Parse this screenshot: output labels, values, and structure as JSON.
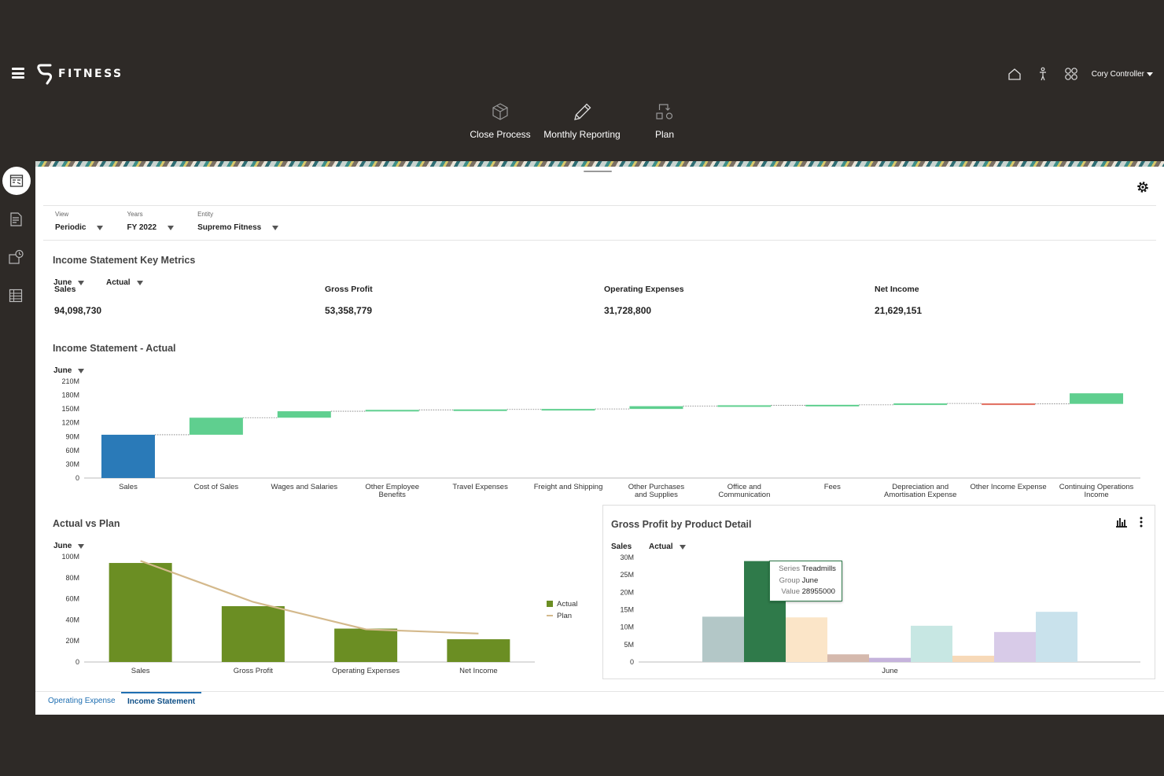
{
  "app": {
    "brand": "FITNESS",
    "user_name": "Cory Controller"
  },
  "nav_cards": [
    {
      "label": "Close Process",
      "icon": "cube-icon"
    },
    {
      "label": "Monthly Reporting",
      "icon": "pencil-icon"
    },
    {
      "label": "Plan",
      "icon": "plan-flow-icon"
    }
  ],
  "filters": {
    "view": {
      "label": "View",
      "value": "Periodic"
    },
    "years": {
      "label": "Years",
      "value": "FY 2022"
    },
    "entity": {
      "label": "Entity",
      "value": "Supremo Fitness"
    }
  },
  "key_metrics": {
    "title": "Income Statement Key Metrics",
    "period": "June",
    "scenario": "Actual",
    "items": [
      {
        "label": "Sales",
        "value": "94,098,730"
      },
      {
        "label": "Gross Profit",
        "value": "53,358,779"
      },
      {
        "label": "Operating Expenses",
        "value": "31,728,800"
      },
      {
        "label": "Net Income",
        "value": "21,629,151"
      }
    ]
  },
  "income_actual": {
    "title": "Income Statement - Actual",
    "period": "June"
  },
  "actual_vs_plan": {
    "title": "Actual vs Plan",
    "period": "June"
  },
  "gross_profit_detail": {
    "title": "Gross Profit by Product Detail",
    "account": "Sales",
    "scenario": "Actual",
    "tooltip": {
      "series_label": "Series",
      "series_value": "Treadmills",
      "group_label": "Group",
      "group_value": "June",
      "value_label": "Value",
      "value_value": "28955000"
    }
  },
  "tabs": [
    {
      "label": "Operating Expense",
      "active": false
    },
    {
      "label": "Income Statement",
      "active": true
    }
  ],
  "chart_data": [
    {
      "type": "waterfall",
      "title": "Income Statement - Actual",
      "categories": [
        "Sales",
        "Cost of Sales",
        "Wages and Salaries",
        "Other Employee Benefits",
        "Travel Expenses",
        "Freight and Shipping",
        "Other Purchases and Supplies",
        "Office and Communication",
        "Fees",
        "Depreciation and Amortisation Expense",
        "Other Income Expense",
        "Continuing Operations Income"
      ],
      "start": [
        0,
        94,
        131,
        145,
        148,
        149,
        150,
        156,
        158,
        159,
        162,
        161
      ],
      "end": [
        94,
        131,
        145,
        148,
        149,
        150,
        156,
        158,
        159,
        162,
        161,
        184
      ],
      "colors": [
        "#2a7ab8",
        "#5fcf8f",
        "#5fcf8f",
        "#5fcf8f",
        "#5fcf8f",
        "#5fcf8f",
        "#5fcf8f",
        "#5fcf8f",
        "#5fcf8f",
        "#5fcf8f",
        "#e06b5c",
        "#5fcf8f"
      ],
      "y_ticks": [
        "210M",
        "180M",
        "150M",
        "120M",
        "90M",
        "60M",
        "30M",
        "0"
      ],
      "ylim": [
        0,
        210
      ],
      "unit": "M"
    },
    {
      "type": "bar",
      "title": "Actual vs Plan",
      "categories": [
        "Sales",
        "Gross Profit",
        "Operating Expenses",
        "Net Income"
      ],
      "series": [
        {
          "name": "Actual",
          "type": "bar",
          "color": "#6b8e23",
          "values": [
            94,
            53,
            31.7,
            21.6
          ]
        },
        {
          "name": "Plan",
          "type": "line",
          "color": "#d4b98c",
          "values": [
            96,
            57,
            31,
            27
          ]
        }
      ],
      "y_ticks": [
        "100M",
        "80M",
        "60M",
        "40M",
        "20M",
        "0"
      ],
      "ylim": [
        0,
        100
      ]
    },
    {
      "type": "bar",
      "title": "Gross Profit by Product Detail",
      "categories": [
        "June"
      ],
      "series": [
        {
          "name": "",
          "color": "#b3c7c7",
          "values": [
            13
          ]
        },
        {
          "name": "Treadmills",
          "color": "#2f7a4a",
          "values": [
            28.955
          ]
        },
        {
          "name": "",
          "color": "#fbe5c8",
          "values": [
            12.8
          ]
        },
        {
          "name": "",
          "color": "#d5b9ad",
          "values": [
            2.2
          ]
        },
        {
          "name": "",
          "color": "#c5b3dc",
          "values": [
            1.2
          ]
        },
        {
          "name": "",
          "color": "#c7e7e3",
          "values": [
            10.4
          ]
        },
        {
          "name": "",
          "color": "#f7d9b8",
          "values": [
            1.8
          ]
        },
        {
          "name": "",
          "color": "#d8cbe8",
          "values": [
            8.6
          ]
        },
        {
          "name": "",
          "color": "#c9e2ec",
          "values": [
            14.4
          ]
        }
      ],
      "y_ticks": [
        "30M",
        "25M",
        "20M",
        "15M",
        "10M",
        "5M",
        "0"
      ],
      "ylim": [
        0,
        30
      ]
    }
  ]
}
